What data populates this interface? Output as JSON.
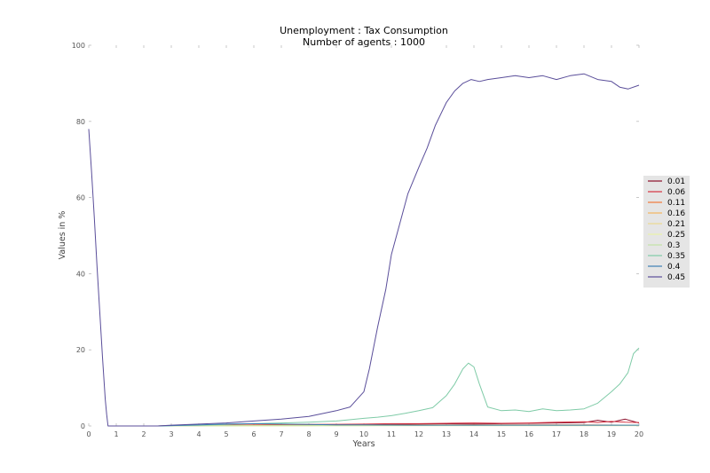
{
  "chart_data": {
    "type": "line",
    "title": "Unemployment : Tax Consumption",
    "subtitle": "Number of agents : 1000",
    "xlabel": "Years",
    "ylabel": "Values in %",
    "xlim": [
      0,
      20
    ],
    "ylim": [
      0,
      100
    ],
    "xticks": [
      0,
      1,
      2,
      3,
      4,
      5,
      6,
      7,
      8,
      9,
      10,
      11,
      12,
      13,
      14,
      15,
      16,
      17,
      18,
      19,
      20
    ],
    "yticks": [
      0,
      20,
      40,
      60,
      80,
      100
    ],
    "grid": false,
    "legend_position": "center-right",
    "series": [
      {
        "name": "0.01",
        "color": "#8b0e2a",
        "x": [
          2.5,
          4,
          6,
          8,
          10,
          11,
          12,
          13,
          14,
          15,
          16,
          17,
          18,
          18.5,
          19,
          19.5,
          20
        ],
        "y": [
          0,
          0.1,
          0.2,
          0.3,
          0.3,
          0.4,
          0.5,
          0.6,
          0.5,
          0.6,
          0.7,
          0.8,
          0.9,
          1.5,
          1.0,
          1.8,
          0.8
        ]
      },
      {
        "name": "0.06",
        "color": "#d73340",
        "x": [
          2.5,
          4,
          6,
          8,
          10,
          11,
          12,
          13,
          14,
          15,
          16,
          17,
          18,
          18.5,
          19,
          19.5,
          20
        ],
        "y": [
          0,
          0.1,
          0.3,
          0.4,
          0.5,
          0.6,
          0.6,
          0.7,
          0.8,
          0.7,
          0.8,
          1.0,
          1.1,
          0.9,
          1.2,
          1.0,
          0.9
        ]
      },
      {
        "name": "0.11",
        "color": "#f07a3a",
        "x": [
          2.5,
          4,
          6,
          8,
          10,
          12,
          14,
          16,
          18,
          20
        ],
        "y": [
          0,
          0.1,
          0.2,
          0.2,
          0.3,
          0.3,
          0.3,
          0.3,
          0.3,
          0.2
        ]
      },
      {
        "name": "0.16",
        "color": "#f5b45e",
        "x": [
          2.5,
          4,
          6,
          8,
          10,
          12,
          14,
          16,
          18,
          20
        ],
        "y": [
          0,
          0.1,
          0.1,
          0.1,
          0.2,
          0.2,
          0.2,
          0.2,
          0.2,
          0.2
        ]
      },
      {
        "name": "0.21",
        "color": "#ecd98f",
        "x": [
          2.5,
          4,
          6,
          8,
          10,
          12,
          14,
          16,
          18,
          20
        ],
        "y": [
          0,
          0.05,
          0.1,
          0.1,
          0.1,
          0.1,
          0.1,
          0.1,
          0.1,
          0.1
        ]
      },
      {
        "name": "0.25",
        "color": "#eaf2a8",
        "x": [
          2.5,
          4,
          6,
          8,
          10,
          12,
          14,
          16,
          18,
          20
        ],
        "y": [
          0,
          0.05,
          0.05,
          0.1,
          0.1,
          0.1,
          0.1,
          0.1,
          0.1,
          0.1
        ]
      },
      {
        "name": "0.3",
        "color": "#c3e3a6",
        "x": [
          2.5,
          4,
          6,
          8,
          10,
          12,
          14,
          16,
          18,
          20
        ],
        "y": [
          0,
          0.05,
          0.1,
          0.1,
          0.1,
          0.2,
          0.2,
          0.2,
          0.2,
          0.2
        ]
      },
      {
        "name": "0.35",
        "color": "#7fcba7",
        "x": [
          2.5,
          3,
          4,
          5,
          6,
          7,
          8,
          9,
          10,
          10.5,
          11,
          11.5,
          12,
          12.5,
          13,
          13.3,
          13.6,
          13.8,
          14.0,
          14.2,
          14.5,
          15,
          15.5,
          16,
          16.5,
          17,
          17.5,
          18,
          18.5,
          19,
          19.3,
          19.6,
          19.8,
          20
        ],
        "y": [
          0,
          0.1,
          0.2,
          0.4,
          0.6,
          0.8,
          1.0,
          1.3,
          2.0,
          2.3,
          2.7,
          3.3,
          4.0,
          4.8,
          8.0,
          11.0,
          15.0,
          16.5,
          15.5,
          11.0,
          5.0,
          4.0,
          4.2,
          3.8,
          4.5,
          4.0,
          4.2,
          4.5,
          6.0,
          9.0,
          11.0,
          14.0,
          19.0,
          20.5
        ]
      },
      {
        "name": "0.4",
        "color": "#3d7fb5",
        "x": [
          2.5,
          3,
          4,
          5,
          6,
          7,
          8,
          9,
          10,
          12,
          14,
          16,
          18,
          20
        ],
        "y": [
          0,
          0.1,
          0.3,
          0.5,
          0.6,
          0.5,
          0.4,
          0.3,
          0.3,
          0.2,
          0.2,
          0.2,
          0.2,
          0.2
        ]
      },
      {
        "name": "0.45",
        "color": "#5a4e9a",
        "x": [
          0,
          0.1,
          0.2,
          0.3,
          0.4,
          0.5,
          0.6,
          0.65,
          0.7,
          2.5,
          3,
          4,
          5,
          6,
          7,
          8,
          9,
          9.5,
          10,
          10.2,
          10.5,
          10.8,
          11,
          11.3,
          11.6,
          12,
          12.3,
          12.6,
          13,
          13.3,
          13.6,
          13.9,
          14.2,
          14.5,
          15,
          15.5,
          16,
          16.5,
          17,
          17.5,
          18,
          18.5,
          19,
          19.3,
          19.6,
          20
        ],
        "y": [
          78,
          67,
          55,
          42,
          30,
          18,
          7,
          3,
          0,
          0,
          0.2,
          0.5,
          0.8,
          1.3,
          1.8,
          2.5,
          4,
          5,
          9,
          15,
          26,
          36,
          45,
          53,
          61,
          68,
          73,
          79,
          85,
          88,
          90,
          91,
          90.5,
          91,
          91.5,
          92,
          91.5,
          92,
          91,
          92,
          92.5,
          91,
          90.5,
          89,
          88.5,
          89.5
        ]
      }
    ]
  }
}
